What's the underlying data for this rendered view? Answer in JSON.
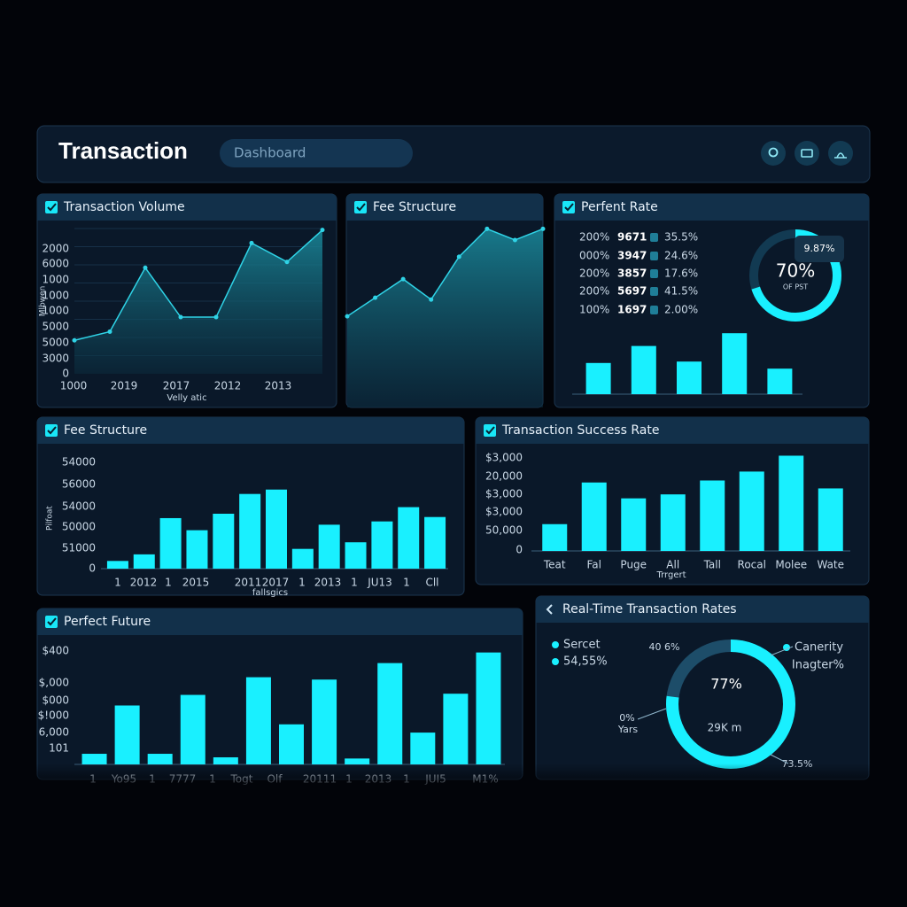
{
  "header": {
    "title": "Transaction",
    "search_placeholder": "Dashboard"
  },
  "chart_data": [
    {
      "type": "area",
      "title": "Transaction Volume",
      "x_label": "Velly atic",
      "y_label": "Mlbwen",
      "y_axis_labels": [
        "2000",
        "6000",
        "1000",
        "1000",
        "1000",
        "5000",
        "5000",
        "3000",
        "0"
      ],
      "x_axis_labels": [
        "1000",
        "2019",
        "2017",
        "2012",
        "2013"
      ],
      "categories": [
        null,
        null,
        null,
        null,
        null,
        null,
        null,
        null
      ],
      "values": [
        23,
        29,
        73,
        39,
        39,
        90,
        77,
        99
      ],
      "ylim": [
        0,
        100
      ],
      "color": "#2fd3e6"
    },
    {
      "type": "area",
      "title": "Fee Structure",
      "categories": [
        null,
        null,
        null,
        null,
        null,
        null,
        null,
        null
      ],
      "values": [
        49,
        59,
        69,
        58,
        81,
        96,
        90,
        96
      ],
      "ylim": [
        0,
        100
      ],
      "color": "#2fd3e6"
    },
    {
      "type": "bar",
      "title": "Perfent Rate",
      "table": {
        "rows": [
          [
            "200%",
            "9671",
            "35.5%"
          ],
          [
            "000%",
            "3947",
            "24.6%"
          ],
          [
            "200%",
            "3857",
            "17.6%"
          ],
          [
            "200%",
            "5697",
            "41.5%"
          ],
          [
            "100%",
            "1697",
            "2.00%"
          ]
        ]
      },
      "gauge": {
        "value": 70,
        "value_label": "70%",
        "caption": "OF PST",
        "badge": "9.87%"
      },
      "categories": [
        null,
        null,
        null,
        null,
        null
      ],
      "values": [
        44,
        68,
        46,
        86,
        36
      ],
      "ylim": [
        0,
        100
      ],
      "color": "#19f0ff"
    },
    {
      "type": "bar",
      "title": "Fee Structure",
      "x_label": "fallsgics",
      "y_label": "Pilfoat",
      "y_axis_labels": [
        "54000",
        "56000",
        "54000",
        "50000",
        "51000",
        "0"
      ],
      "x_axis_labels": [
        "1",
        "2012",
        "1",
        "2015",
        "2011",
        "2017",
        "1",
        "2013",
        "1",
        "JU13",
        "1",
        "Cll"
      ],
      "categories": [
        null,
        null,
        null,
        null,
        null,
        null,
        null,
        null,
        null,
        null,
        null,
        null,
        null
      ],
      "values": [
        7,
        13,
        46,
        35,
        50,
        68,
        72,
        18,
        40,
        24,
        43,
        56,
        47
      ],
      "ylim": [
        0,
        100
      ],
      "color": "#19f0ff"
    },
    {
      "type": "bar",
      "title": "Transaction Success Rate",
      "x_label": "Trrgert",
      "y_axis_labels": [
        "$3,000",
        "20,000",
        "$3,000",
        "$3,000",
        "50,000",
        "0"
      ],
      "categories": [
        "Teat",
        "Fal",
        "Puge",
        "All",
        "Tall",
        "Rocal",
        "Molee",
        "Wate"
      ],
      "values": [
        27,
        69,
        53,
        57,
        71,
        80,
        96,
        63
      ],
      "ylim": [
        0,
        100
      ],
      "color": "#19f0ff"
    },
    {
      "type": "bar",
      "title": "Perfect Future",
      "y_axis_labels": [
        "$400",
        "$,000",
        "$000",
        "$!000",
        "6,000",
        "101"
      ],
      "x_axis_labels": [
        "1",
        "Yo95",
        "1",
        "7777",
        "1",
        "Togt",
        "Olf",
        "20111",
        "1",
        "2013",
        "1",
        "JUI5",
        "M1%"
      ],
      "categories": [
        null,
        null,
        null,
        null,
        null,
        null,
        null,
        null,
        null,
        null,
        null,
        null,
        null
      ],
      "values": [
        9,
        50,
        9,
        59,
        6,
        74,
        34,
        72,
        5,
        86,
        27,
        60,
        95
      ],
      "ylim": [
        0,
        100
      ],
      "color": "#19f0ff"
    },
    {
      "type": "donut",
      "title": "Real-Time Transaction Rates",
      "value": 77,
      "value_label": "77%",
      "center_sub": "29K m",
      "legend": [
        "Sercet",
        "54,55%",
        "Canerity",
        "Inagter%"
      ],
      "annotations": [
        "40 6%",
        "0%",
        "Yars",
        "73.5%"
      ],
      "color": "#19f0ff"
    }
  ]
}
